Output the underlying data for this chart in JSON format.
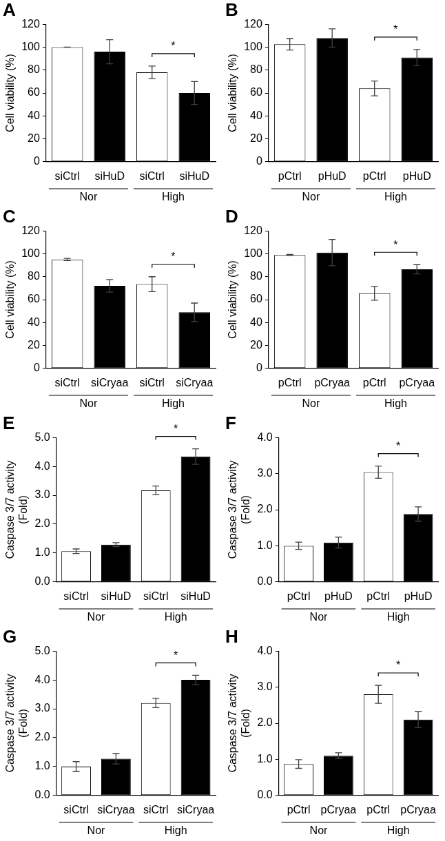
{
  "chart_data": [
    {
      "type": "bar",
      "title": "A",
      "ylabel": "Cell viability (%)",
      "categories": [
        "siCtrl",
        "siHuD",
        "siCtrl",
        "siHuD"
      ],
      "values": [
        100,
        96,
        78,
        60
      ],
      "errors": [
        0,
        10.5,
        5.5,
        10
      ],
      "colors": [
        "#ffffff",
        "#000000",
        "#ffffff",
        "#000000"
      ],
      "ylim": [
        0,
        120
      ],
      "yticks": [
        0,
        20,
        40,
        60,
        80,
        100,
        120
      ],
      "annotations": [
        "*",
        "Nor",
        "High"
      ]
    },
    {
      "type": "bar",
      "title": "B",
      "ylabel": "Cell viability (%)",
      "categories": [
        "pCtrl",
        "pHuD",
        "pCtrl",
        "pHuD"
      ],
      "values": [
        102.5,
        108,
        64,
        91
      ],
      "errors": [
        5,
        8,
        6.5,
        7
      ],
      "colors": [
        "#ffffff",
        "#000000",
        "#ffffff",
        "#000000"
      ],
      "ylim": [
        0,
        120
      ],
      "yticks": [
        0,
        20,
        40,
        60,
        80,
        100,
        120
      ],
      "annotations": [
        "*",
        "Nor",
        "High"
      ]
    },
    {
      "type": "bar",
      "title": "C",
      "ylabel": "Cell viability (%)",
      "categories": [
        "siCtrl",
        "siCryaa",
        "siCtrl",
        "siCryaa"
      ],
      "values": [
        95,
        72,
        73.5,
        49
      ],
      "errors": [
        1,
        5.5,
        6.5,
        8
      ],
      "colors": [
        "#ffffff",
        "#000000",
        "#ffffff",
        "#000000"
      ],
      "ylim": [
        0,
        120
      ],
      "yticks": [
        0,
        20,
        40,
        60,
        80,
        100,
        120
      ],
      "annotations": [
        "*",
        "Nor",
        "High"
      ]
    },
    {
      "type": "bar",
      "title": "D",
      "ylabel": "Cell viability (%)",
      "categories": [
        "pCtrl",
        "pCryaa",
        "pCtrl",
        "pCryaa"
      ],
      "values": [
        99,
        101,
        65.5,
        86.5
      ],
      "errors": [
        0.5,
        11.5,
        6,
        4
      ],
      "colors": [
        "#ffffff",
        "#000000",
        "#ffffff",
        "#000000"
      ],
      "ylim": [
        0,
        120
      ],
      "yticks": [
        0,
        20,
        40,
        60,
        80,
        100,
        120
      ],
      "annotations": [
        "*",
        "Nor",
        "High"
      ]
    },
    {
      "type": "bar",
      "title": "E",
      "ylabel": "Caspase 3/7 activity\n(Fold)",
      "categories": [
        "siCtrl",
        "siHuD",
        "siCtrl",
        "siHuD"
      ],
      "values": [
        1.06,
        1.29,
        3.17,
        4.34
      ],
      "errors": [
        0.08,
        0.07,
        0.15,
        0.27
      ],
      "colors": [
        "#ffffff",
        "#000000",
        "#ffffff",
        "#000000"
      ],
      "ylim": [
        0,
        5
      ],
      "yticks": [
        {
          "value": 0,
          "label": "0.0"
        },
        {
          "value": 1,
          "label": "1.0"
        },
        {
          "value": 2,
          "label": "2.0"
        },
        {
          "value": 3,
          "label": "3.0"
        },
        {
          "value": 4,
          "label": "4.0"
        },
        {
          "value": 5,
          "label": "5.0"
        }
      ],
      "annotations": [
        "*",
        "Nor",
        "High"
      ]
    },
    {
      "type": "bar",
      "title": "F",
      "ylabel": "Caspase 3/7 activity\n(Fold)",
      "categories": [
        "pCtrl",
        "pHuD",
        "pCtrl",
        "pHuD"
      ],
      "values": [
        1.0,
        1.09,
        3.04,
        1.88
      ],
      "errors": [
        0.1,
        0.15,
        0.17,
        0.2
      ],
      "colors": [
        "#ffffff",
        "#000000",
        "#ffffff",
        "#000000"
      ],
      "ylim": [
        0,
        4
      ],
      "yticks": [
        {
          "value": 0,
          "label": "0.0"
        },
        {
          "value": 1,
          "label": "1.0"
        },
        {
          "value": 2,
          "label": "2.0"
        },
        {
          "value": 3,
          "label": "3.0"
        },
        {
          "value": 4,
          "label": "4.0"
        }
      ],
      "annotations": [
        "*",
        "Nor",
        "High"
      ]
    },
    {
      "type": "bar",
      "title": "G",
      "ylabel": "Caspase 3/7 activity\n(Fold)",
      "categories": [
        "siCtrl",
        "siCryaa",
        "siCtrl",
        "siCryaa"
      ],
      "values": [
        1.0,
        1.27,
        3.2,
        4.0
      ],
      "errors": [
        0.17,
        0.18,
        0.16,
        0.16
      ],
      "colors": [
        "#ffffff",
        "#000000",
        "#ffffff",
        "#000000"
      ],
      "ylim": [
        0,
        5
      ],
      "yticks": [
        {
          "value": 0,
          "label": "0.0"
        },
        {
          "value": 1,
          "label": "1.0"
        },
        {
          "value": 2,
          "label": "2.0"
        },
        {
          "value": 3,
          "label": "3.0"
        },
        {
          "value": 4,
          "label": "4.0"
        },
        {
          "value": 5,
          "label": "5.0"
        }
      ],
      "annotations": [
        "*",
        "Nor",
        "High"
      ]
    },
    {
      "type": "bar",
      "title": "H",
      "ylabel": "Caspase 3/7 activity\n(Fold)",
      "categories": [
        "pCtrl",
        "pCryaa",
        "pCtrl",
        "pCryaa"
      ],
      "values": [
        0.87,
        1.1,
        2.8,
        2.1
      ],
      "errors": [
        0.12,
        0.08,
        0.25,
        0.22
      ],
      "colors": [
        "#ffffff",
        "#000000",
        "#ffffff",
        "#000000"
      ],
      "ylim": [
        0,
        4
      ],
      "yticks": [
        {
          "value": 0,
          "label": "0.0"
        },
        {
          "value": 1,
          "label": "1.0"
        },
        {
          "value": 2,
          "label": "2.0"
        },
        {
          "value": 3,
          "label": "3.0"
        },
        {
          "value": 4,
          "label": "4.0"
        }
      ],
      "annotations": [
        "*",
        "Nor",
        "High"
      ]
    }
  ]
}
